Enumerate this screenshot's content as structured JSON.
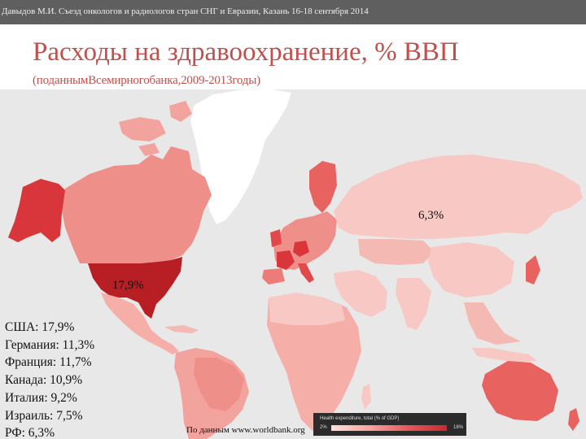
{
  "header": {
    "text": "Давыдов М.И. Съезд онкологов и радиологов стран СНГ и Евразии, Казань 16-18 сентября 2014"
  },
  "title": "Расходы на здравоохранение, % ВВП",
  "subtitle": "(поданнымВсемирногобанка,2009-2013годы)",
  "map": {
    "labels": {
      "russia": "6,3%",
      "usa": "17,9%"
    },
    "colors": {
      "ocean": "#e8e8e8",
      "light": "#f8c9c4",
      "medium": "#ef8f8a",
      "dark": "#d9363b",
      "darkest": "#b81f25",
      "greenland": "#ffffff"
    }
  },
  "stats": [
    "США: 17,9%",
    "Германия: 11,3%",
    "Франция: 11,7%",
    "Канада: 10,9%",
    "Италия: 9,2%",
    "Израиль: 7,5%",
    "РФ: 6,3%"
  ],
  "source": "По данным www.worldbank.org",
  "legend": {
    "title": "Health expenditure, total (% of GDP)",
    "min": "2%",
    "max": "18%"
  }
}
